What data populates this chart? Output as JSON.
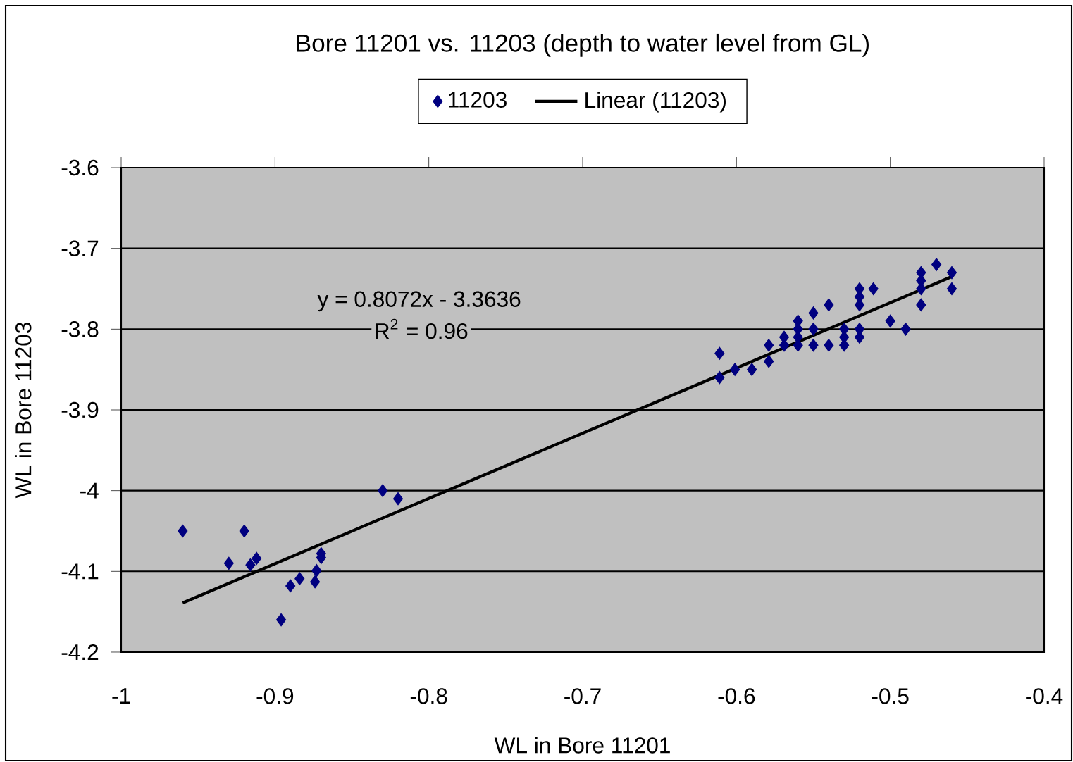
{
  "chart_data": {
    "type": "scatter",
    "title": "Bore 11201 vs. 11203 (depth to water level from GL)",
    "xlabel": "WL in Bore 11201",
    "ylabel": "WL in Bore 11203",
    "xlim": [
      -1,
      -0.4
    ],
    "xticks": [
      -1,
      -0.9,
      -0.8,
      -0.7,
      -0.6,
      -0.5,
      -0.4
    ],
    "ylim": [
      -4.2,
      -3.6
    ],
    "yticks": [
      -4.2,
      -4.1,
      -4,
      -3.9,
      -3.8,
      -3.7,
      -3.6
    ],
    "grid": "y",
    "legend": "top",
    "annotations": [
      "y = 0.8072x - 3.3636",
      "R$^{2}$ = 0.96"
    ],
    "series": [
      {
        "name": "11203",
        "marker": "diamond",
        "color": "#000080",
        "x": [
          -0.96,
          -0.93,
          -0.92,
          -0.916,
          -0.912,
          -0.89,
          -0.884,
          -0.874,
          -0.873,
          -0.87,
          -0.87,
          -0.896,
          -0.83,
          -0.82,
          -0.611,
          -0.611,
          -0.601,
          -0.59,
          -0.579,
          -0.579,
          -0.569,
          -0.569,
          -0.56,
          -0.56,
          -0.56,
          -0.56,
          -0.55,
          -0.55,
          -0.55,
          -0.54,
          -0.54,
          -0.53,
          -0.53,
          -0.53,
          -0.52,
          -0.52,
          -0.52,
          -0.52,
          -0.52,
          -0.511,
          -0.5,
          -0.49,
          -0.48,
          -0.48,
          -0.48,
          -0.48,
          -0.47,
          -0.46,
          -0.46
        ],
        "values": [
          -4.05,
          -4.09,
          -4.05,
          -4.092,
          -4.084,
          -4.118,
          -4.109,
          -4.113,
          -4.099,
          -4.078,
          -4.083,
          -4.16,
          -4.0,
          -4.01,
          -3.83,
          -3.86,
          -3.85,
          -3.85,
          -3.82,
          -3.84,
          -3.81,
          -3.82,
          -3.79,
          -3.8,
          -3.81,
          -3.82,
          -3.78,
          -3.8,
          -3.82,
          -3.77,
          -3.82,
          -3.8,
          -3.81,
          -3.82,
          -3.75,
          -3.76,
          -3.77,
          -3.8,
          -3.81,
          -3.75,
          -3.79,
          -3.8,
          -3.73,
          -3.74,
          -3.75,
          -3.77,
          -3.72,
          -3.73,
          -3.75
        ]
      },
      {
        "name": "Linear (11203)",
        "type": "line",
        "marker": "none",
        "line_style": "solid",
        "color": "#000000",
        "x": [
          -0.96,
          -0.46
        ],
        "values": [
          -4.139,
          -3.735
        ]
      }
    ]
  }
}
